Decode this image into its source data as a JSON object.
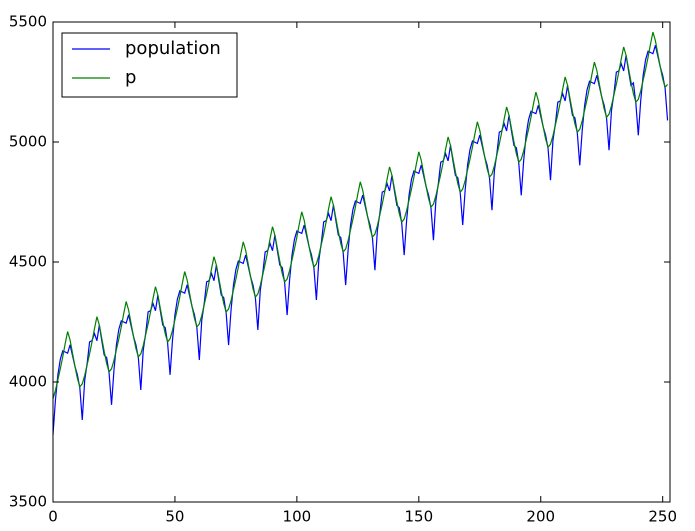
{
  "chart_data": {
    "type": "line",
    "x": [
      0,
      1,
      2,
      3,
      4,
      5,
      6,
      7,
      8,
      9,
      10,
      11,
      12,
      13,
      14,
      15,
      16,
      17,
      18,
      19,
      20,
      21,
      22,
      23,
      24,
      25,
      26,
      27,
      28,
      29,
      30,
      31,
      32,
      33,
      34,
      35,
      36,
      37,
      38,
      39,
      40,
      41,
      42,
      43,
      44,
      45,
      46,
      47,
      48,
      49,
      50,
      51,
      52,
      53,
      54,
      55,
      56,
      57,
      58,
      59,
      60,
      61,
      62,
      63,
      64,
      65,
      66,
      67,
      68,
      69,
      70,
      71,
      72,
      73,
      74,
      75,
      76,
      77,
      78,
      79,
      80,
      81,
      82,
      83,
      84,
      85,
      86,
      87,
      88,
      89,
      90,
      91,
      92,
      93,
      94,
      95,
      96,
      97,
      98,
      99,
      100,
      101,
      102,
      103,
      104,
      105,
      106,
      107,
      108,
      109,
      110,
      111,
      112,
      113,
      114,
      115,
      116,
      117,
      118,
      119,
      120,
      121,
      122,
      123,
      124,
      125,
      126,
      127,
      128,
      129,
      130,
      131,
      132,
      133,
      134,
      135,
      136,
      137,
      138,
      139,
      140,
      141,
      142,
      143,
      144,
      145,
      146,
      147,
      148,
      149,
      150,
      151,
      152,
      153,
      154,
      155,
      156,
      157,
      158,
      159,
      160,
      161,
      162,
      163,
      164,
      165,
      166,
      167,
      168,
      169,
      170,
      171,
      172,
      173,
      174,
      175,
      176,
      177,
      178,
      179,
      180,
      181,
      182,
      183,
      184,
      185,
      186,
      187,
      188,
      189,
      190,
      191,
      192,
      193,
      194,
      195,
      196,
      197,
      198,
      199,
      200,
      201,
      202,
      203,
      204,
      205,
      206,
      207,
      208,
      209,
      210,
      211,
      212,
      213,
      214,
      215,
      216,
      217,
      218,
      219,
      220,
      221,
      222,
      223,
      224,
      225,
      226,
      227,
      228,
      229,
      230,
      231,
      232,
      233,
      234,
      235,
      236,
      237,
      238,
      239,
      240,
      241,
      242,
      243,
      244,
      245,
      246,
      247,
      248,
      249,
      250,
      251,
      252
    ],
    "series": [
      {
        "name": "population",
        "color": "#0000ff",
        "values": [
          3780,
          3925,
          4030,
          4095,
          4130,
          4125,
          4120,
          4155,
          4110,
          4065,
          4030,
          3975,
          3842,
          4007,
          4077,
          4167,
          4172,
          4202,
          4172,
          4237,
          4172,
          4112,
          4102,
          4037,
          3905,
          4050,
          4155,
          4220,
          4255,
          4250,
          4245,
          4280,
          4235,
          4190,
          4155,
          4100,
          3967,
          4132,
          4202,
          4292,
          4297,
          4327,
          4297,
          4362,
          4297,
          4237,
          4227,
          4162,
          4030,
          4175,
          4280,
          4345,
          4380,
          4375,
          4370,
          4405,
          4360,
          4315,
          4280,
          4225,
          4092,
          4257,
          4327,
          4417,
          4422,
          4452,
          4422,
          4487,
          4422,
          4362,
          4352,
          4287,
          4154,
          4299,
          4404,
          4469,
          4504,
          4499,
          4494,
          4529,
          4484,
          4439,
          4404,
          4349,
          4217,
          4382,
          4452,
          4542,
          4547,
          4577,
          4547,
          4612,
          4547,
          4487,
          4477,
          4412,
          4279,
          4424,
          4529,
          4594,
          4629,
          4624,
          4619,
          4654,
          4609,
          4564,
          4529,
          4474,
          4342,
          4507,
          4577,
          4667,
          4672,
          4702,
          4672,
          4737,
          4672,
          4612,
          4602,
          4537,
          4404,
          4549,
          4654,
          4719,
          4754,
          4749,
          4744,
          4779,
          4734,
          4689,
          4654,
          4599,
          4466,
          4631,
          4701,
          4791,
          4796,
          4826,
          4796,
          4861,
          4796,
          4736,
          4726,
          4661,
          4529,
          4674,
          4779,
          4844,
          4879,
          4874,
          4869,
          4904,
          4859,
          4814,
          4779,
          4724,
          4591,
          4756,
          4826,
          4916,
          4921,
          4951,
          4921,
          4986,
          4921,
          4861,
          4851,
          4786,
          4654,
          4799,
          4904,
          4969,
          5004,
          4999,
          4994,
          5029,
          4984,
          4939,
          4904,
          4849,
          4716,
          4881,
          4951,
          5041,
          5046,
          5076,
          5046,
          5111,
          5046,
          4986,
          4976,
          4911,
          4778,
          4923,
          5028,
          5093,
          5128,
          5123,
          5118,
          5153,
          5108,
          5063,
          5028,
          4973,
          4841,
          5006,
          5076,
          5166,
          5171,
          5201,
          5171,
          5236,
          5171,
          5111,
          5101,
          5036,
          4903,
          5048,
          5153,
          5218,
          5253,
          5248,
          5243,
          5278,
          5233,
          5188,
          5153,
          5098,
          4966,
          5131,
          5201,
          5291,
          5296,
          5326,
          5296,
          5361,
          5296,
          5236,
          5246,
          5161,
          5028,
          5173,
          5278,
          5343,
          5378,
          5373,
          5368,
          5403,
          5358,
          5313,
          5278,
          5223,
          5090
        ]
      },
      {
        "name": "p",
        "color": "#008000",
        "values": [
          3930,
          3965,
          4010,
          4055,
          4105,
          4160,
          4210,
          4175,
          4120,
          4065,
          4015,
          3980,
          3992,
          4027,
          4072,
          4117,
          4167,
          4222,
          4272,
          4237,
          4182,
          4127,
          4077,
          4042,
          4055,
          4090,
          4135,
          4180,
          4230,
          4285,
          4335,
          4300,
          4245,
          4190,
          4140,
          4105,
          4117,
          4152,
          4197,
          4242,
          4292,
          4347,
          4397,
          4362,
          4307,
          4252,
          4202,
          4167,
          4180,
          4215,
          4260,
          4305,
          4355,
          4410,
          4460,
          4425,
          4370,
          4315,
          4265,
          4230,
          4242,
          4277,
          4322,
          4367,
          4417,
          4472,
          4522,
          4487,
          4432,
          4377,
          4327,
          4292,
          4304,
          4339,
          4384,
          4429,
          4479,
          4534,
          4584,
          4549,
          4494,
          4439,
          4389,
          4354,
          4367,
          4402,
          4447,
          4492,
          4542,
          4597,
          4647,
          4612,
          4557,
          4502,
          4452,
          4417,
          4429,
          4464,
          4509,
          4554,
          4604,
          4659,
          4709,
          4674,
          4619,
          4564,
          4514,
          4479,
          4492,
          4527,
          4572,
          4617,
          4667,
          4722,
          4772,
          4737,
          4682,
          4627,
          4577,
          4542,
          4554,
          4589,
          4634,
          4679,
          4729,
          4784,
          4834,
          4799,
          4744,
          4689,
          4639,
          4604,
          4616,
          4651,
          4696,
          4741,
          4791,
          4846,
          4896,
          4861,
          4806,
          4751,
          4701,
          4666,
          4679,
          4714,
          4759,
          4804,
          4854,
          4909,
          4959,
          4924,
          4869,
          4814,
          4764,
          4729,
          4741,
          4776,
          4821,
          4866,
          4916,
          4971,
          5021,
          4986,
          4931,
          4876,
          4826,
          4791,
          4804,
          4839,
          4884,
          4929,
          4979,
          5034,
          5084,
          5049,
          4994,
          4939,
          4889,
          4854,
          4866,
          4901,
          4946,
          4991,
          5041,
          5096,
          5146,
          5111,
          5056,
          5001,
          4951,
          4916,
          4928,
          4963,
          5008,
          5053,
          5103,
          5158,
          5208,
          5173,
          5118,
          5063,
          5013,
          4978,
          4991,
          5026,
          5071,
          5116,
          5166,
          5221,
          5271,
          5236,
          5181,
          5126,
          5076,
          5041,
          5053,
          5088,
          5133,
          5178,
          5228,
          5283,
          5333,
          5298,
          5243,
          5188,
          5138,
          5103,
          5116,
          5151,
          5196,
          5241,
          5291,
          5346,
          5396,
          5361,
          5306,
          5251,
          5201,
          5166,
          5178,
          5213,
          5258,
          5303,
          5353,
          5408,
          5458,
          5423,
          5368,
          5313,
          5263,
          5228,
          5240
        ]
      }
    ],
    "xlim": [
      0,
      253
    ],
    "xticks": [
      0,
      50,
      100,
      150,
      200,
      250
    ],
    "ylim": [
      3500,
      5500
    ],
    "yticks": [
      3500,
      4000,
      4500,
      5000,
      5500
    ],
    "legend": "upper left"
  }
}
